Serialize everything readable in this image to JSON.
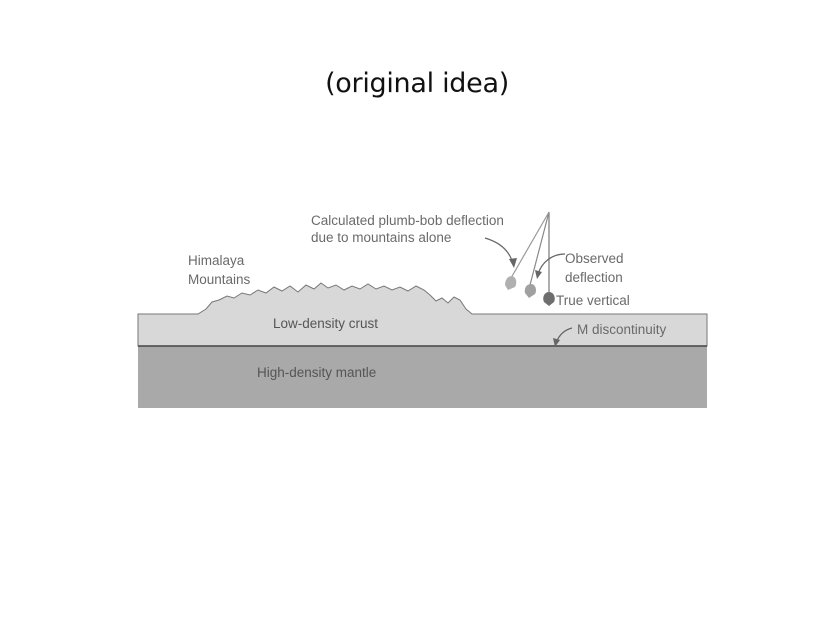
{
  "slide": {
    "title": "(original idea)"
  },
  "diagram": {
    "labels": {
      "mountains_line1": "Himalaya",
      "mountains_line2": "Mountains",
      "calc_line1": "Calculated plumb-bob deflection",
      "calc_line2": "due to mountains alone",
      "observed_line1": "Observed",
      "observed_line2": "deflection",
      "true_vertical": "True vertical",
      "crust": "Low-density crust",
      "m_discontinuity": "M discontinuity",
      "mantle": "High-density mantle"
    },
    "colors": {
      "crust": "#d8d8d8",
      "mantle": "#a9a9a9",
      "line": "#555555",
      "bob": "#a0a0a0",
      "bob_dark": "#6e6e6e",
      "text": "#6a6a6a"
    }
  }
}
